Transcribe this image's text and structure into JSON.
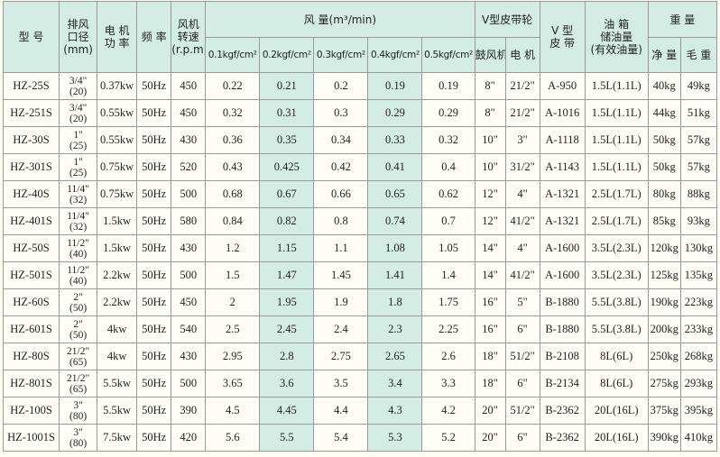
{
  "header": {
    "model": "型 号",
    "exhaust": [
      "排风",
      "口径",
      "(mm)"
    ],
    "power": [
      "电 机",
      "功 率"
    ],
    "freq": "频 率",
    "speed": [
      "风机",
      "转速",
      "(r.p.m)"
    ],
    "airflow": "风 量(m³/min)",
    "pressures": [
      "0.1kgf/cm²",
      "0.2kgf/cm²",
      "0.3kgf/cm²",
      "0.4kgf/cm²",
      "0.5kgf/cm²"
    ],
    "pulley": "V型皮带轮",
    "pulley_cols": [
      "鼓风机",
      "电 机"
    ],
    "belt": [
      "V 型",
      "皮 带"
    ],
    "oil": [
      "油 箱",
      "储油量",
      "(有效油量)"
    ],
    "weight": "重 量",
    "weight_cols": [
      "净 量",
      "毛 重"
    ]
  },
  "table": {
    "rows": [
      [
        "HZ-25S",
        "3/4\"",
        "(20)",
        "0.37kw",
        "50Hz",
        450,
        0.22,
        0.21,
        0.2,
        0.19,
        0.19,
        "8\"",
        "21/2\"",
        "A-950",
        "1.5L(1.1L)",
        "40kg",
        "49kg"
      ],
      [
        "HZ-251S",
        "3/4\"",
        "(20)",
        "0.55kw",
        "50Hz",
        450,
        0.32,
        0.31,
        0.3,
        0.29,
        0.29,
        "8\"",
        "21/2\"",
        "A-1016",
        "1.5L(1.1L)",
        "44kg",
        "51kg"
      ],
      [
        "HZ-30S",
        "1\"",
        "(25)",
        "0.55kw",
        "50Hz",
        430,
        0.36,
        0.35,
        0.34,
        0.33,
        0.32,
        "10\"",
        "3\"",
        "A-1118",
        "1.5L(1.1L)",
        "50kg",
        "57kg"
      ],
      [
        "HZ-301S",
        "1\"",
        "(25)",
        "0.75kw",
        "50Hz",
        520,
        0.43,
        0.425,
        0.42,
        0.41,
        0.4,
        "10\"",
        "31/2\"",
        "A-1143",
        "1.5L(1.1L)",
        "50kg",
        "57kg"
      ],
      [
        "HZ-40S",
        "11/4\"",
        "(32)",
        "0.75kw",
        "50Hz",
        500,
        0.68,
        0.67,
        0.66,
        0.65,
        0.62,
        "12\"",
        "4\"",
        "A-1321",
        "2.5L(1.7L)",
        "80kg",
        "88kg"
      ],
      [
        "HZ-401S",
        "11/4\"",
        "(32)",
        "1.5kw",
        "50Hz",
        580,
        0.84,
        0.82,
        0.8,
        0.74,
        0.7,
        "12\"",
        "41/2\"",
        "A-1321",
        "2.5L(1.7L)",
        "85kg",
        "93kg"
      ],
      [
        "HZ-50S",
        "11/2\"",
        "(40)",
        "1.5kw",
        "50Hz",
        430,
        1.2,
        1.15,
        1.1,
        1.08,
        1.05,
        "14\"",
        "4\"",
        "A-1600",
        "3.5L(2.3L)",
        "120kg",
        "130kg"
      ],
      [
        "HZ-501S",
        "11/2\"",
        "(40)",
        "2.2kw",
        "50Hz",
        500,
        1.5,
        1.47,
        1.45,
        1.41,
        1.4,
        "14\"",
        "41/2\"",
        "A-1600",
        "3.5L(2.3L)",
        "125kg",
        "135kg"
      ],
      [
        "HZ-60S",
        "2\"",
        "(50)",
        "2.2kw",
        "50Hz",
        450,
        2,
        1.95,
        1.9,
        1.8,
        1.75,
        "16\"",
        "5\"",
        "B-1880",
        "5.5L(3.8L)",
        "190kg",
        "223kg"
      ],
      [
        "HZ-601S",
        "2\"",
        "(50)",
        "4kw",
        "50Hz",
        540,
        2.5,
        2.45,
        2.4,
        2.3,
        2.25,
        "16\"",
        "6\"",
        "B-1880",
        "5.5L(3.8L)",
        "200kg",
        "233kg"
      ],
      [
        "HZ-80S",
        "21/2\"",
        "(65)",
        "4kw",
        "50Hz",
        430,
        2.95,
        2.8,
        2.75,
        2.65,
        2.6,
        "18\"",
        "51/2\"",
        "B-2108",
        "8L(6L)",
        "250kg",
        "268kg"
      ],
      [
        "HZ-801S",
        "21/2\"",
        "(65)",
        "5.5kw",
        "50Hz",
        500,
        3.65,
        3.6,
        3.5,
        3.4,
        3.3,
        "18\"",
        "6\"",
        "B-2134",
        "8L(6L)",
        "275kg",
        "293kg"
      ],
      [
        "HZ-100S",
        "3\"",
        "(80)",
        "5.5kw",
        "50Hz",
        390,
        4.5,
        4.45,
        4.4,
        4.3,
        4.2,
        "20\"",
        "51/2\"",
        "B-2362",
        "20L(16L)",
        "375kg",
        "395kg"
      ],
      [
        "HZ-1001S",
        "3\"",
        "(80)",
        "7.5kw",
        "50Hz",
        420,
        5.6,
        5.5,
        5.4,
        5.3,
        5.2,
        "20\"",
        "6\"",
        "B-2362",
        "20L(16L)",
        "390kg",
        "410kg"
      ]
    ]
  }
}
